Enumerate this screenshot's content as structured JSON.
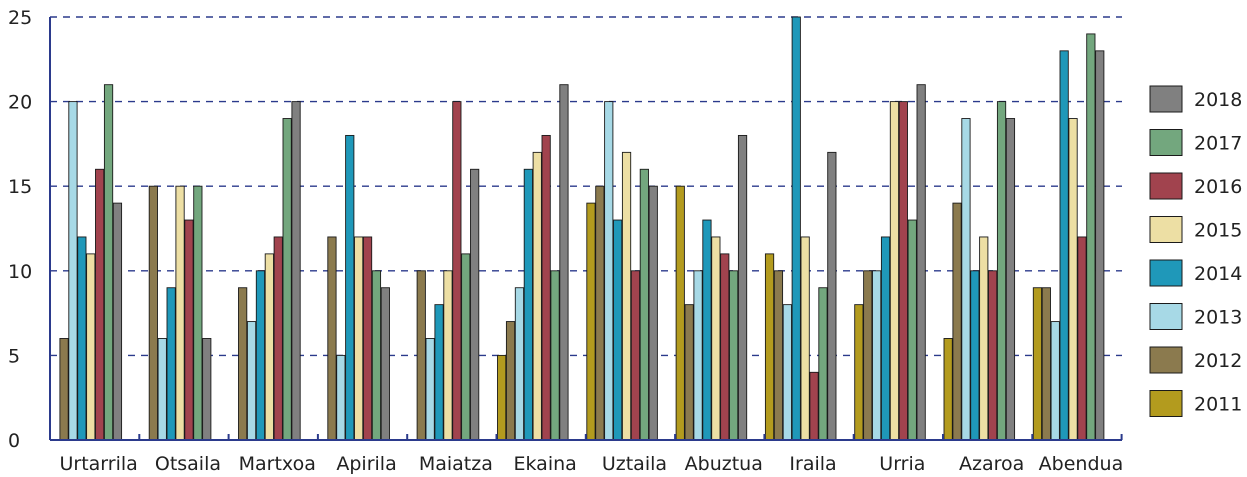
{
  "chart_data": {
    "type": "bar",
    "categories": [
      "Urtarrila",
      "Otsaila",
      "Martxoa",
      "Apirila",
      "Maiatza",
      "Ekaina",
      "Uztaila",
      "Abuztua",
      "Iraila",
      "Urria",
      "Azaroa",
      "Abendua"
    ],
    "ylim": [
      0,
      25
    ],
    "yticks": [
      0,
      5,
      10,
      15,
      20,
      25
    ],
    "grid": true,
    "legend_position": "right",
    "series": [
      {
        "name": "2011",
        "color": "#B39B1E",
        "values": [
          0,
          0,
          0,
          0,
          0,
          5,
          14,
          15,
          11,
          8,
          6,
          9
        ]
      },
      {
        "name": "2012",
        "color": "#8B7A4E",
        "values": [
          6,
          15,
          9,
          12,
          10,
          7,
          15,
          8,
          10,
          10,
          14,
          9
        ]
      },
      {
        "name": "2013",
        "color": "#A7D9E6",
        "values": [
          20,
          6,
          7,
          5,
          6,
          9,
          20,
          10,
          8,
          10,
          19,
          7
        ]
      },
      {
        "name": "2014",
        "color": "#1F98B9",
        "values": [
          12,
          9,
          10,
          18,
          8,
          16,
          13,
          13,
          25,
          12,
          10,
          23
        ]
      },
      {
        "name": "2015",
        "color": "#EDDFA4",
        "values": [
          11,
          15,
          11,
          12,
          10,
          17,
          17,
          12,
          12,
          20,
          12,
          19
        ]
      },
      {
        "name": "2016",
        "color": "#A1434E",
        "values": [
          16,
          13,
          12,
          12,
          20,
          18,
          10,
          11,
          4,
          20,
          10,
          12
        ]
      },
      {
        "name": "2017",
        "color": "#73A77E",
        "values": [
          21,
          15,
          19,
          10,
          11,
          10,
          16,
          10,
          9,
          13,
          20,
          24
        ]
      },
      {
        "name": "2018",
        "color": "#808080",
        "values": [
          14,
          6,
          20,
          9,
          16,
          21,
          15,
          18,
          17,
          21,
          19,
          23
        ]
      }
    ]
  }
}
